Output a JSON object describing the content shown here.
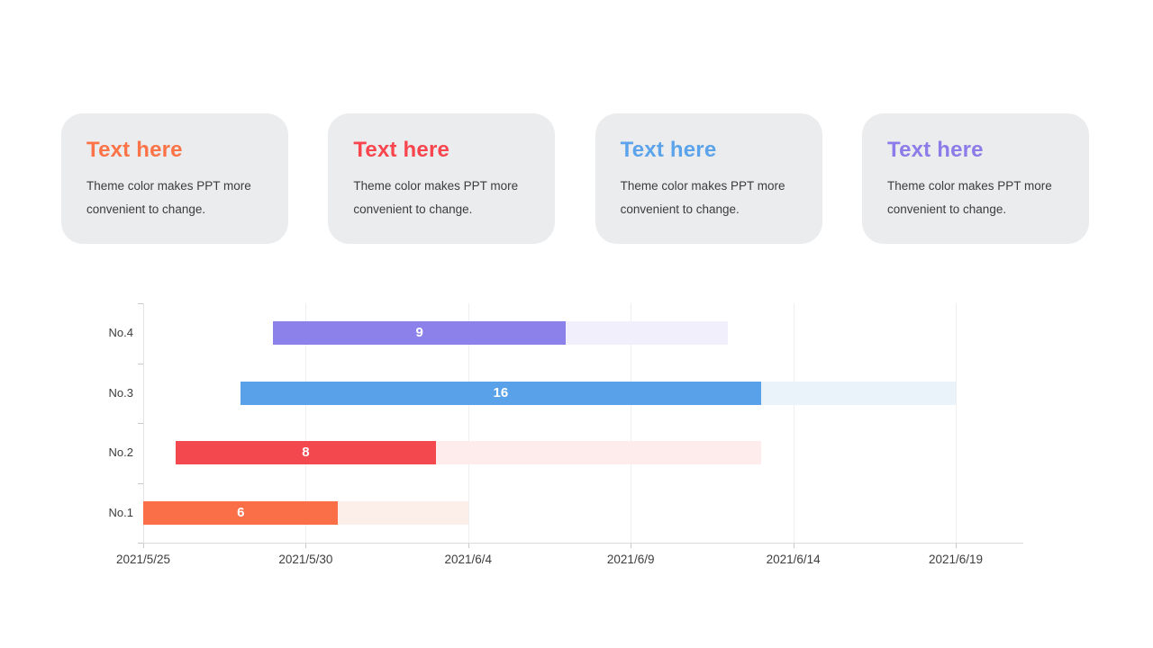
{
  "slide": {
    "card_bg": "#ebecee",
    "cards": [
      {
        "title": "Text here",
        "title_color": "#fb7347",
        "body": "Theme color makes PPT more convenient to change."
      },
      {
        "title": "Text here",
        "title_color": "#f8454e",
        "body": "Theme color makes PPT more convenient to change."
      },
      {
        "title": "Text here",
        "title_color": "#5ba3ea",
        "body": "Theme color makes PPT more convenient to change."
      },
      {
        "title": "Text here",
        "title_color": "#8c7be8",
        "body": "Theme color makes PPT more convenient to change."
      }
    ]
  },
  "chart_data": {
    "type": "bar",
    "subtype": "horizontal-gantt",
    "title": "",
    "xlabel": "",
    "ylabel": "",
    "grid": "vertical-light",
    "legend": "none",
    "x_axis": {
      "tick_labels": [
        "2021/5/25",
        "2021/5/30",
        "2021/6/4",
        "2021/6/9",
        "2021/6/14",
        "2021/6/19"
      ],
      "tick_days": [
        0,
        5,
        10,
        15,
        20,
        25
      ],
      "days_per_tick": 5,
      "range_days": [
        0,
        25
      ]
    },
    "rows_top_to_bottom": [
      "No.4",
      "No.3",
      "No.2",
      "No.1"
    ],
    "series": [
      {
        "label": "No.1",
        "value": 6,
        "value_label": "6",
        "start_day": 0,
        "solid_end_day": 6,
        "track_end_day": 10,
        "color": "#fa6e48",
        "track_color": "#fceee8"
      },
      {
        "label": "No.2",
        "value": 8,
        "value_label": "8",
        "start_day": 1,
        "solid_end_day": 9,
        "track_end_day": 19,
        "color": "#f4484f",
        "track_color": "#fdeceb"
      },
      {
        "label": "No.3",
        "value": 16,
        "value_label": "16",
        "start_day": 3,
        "solid_end_day": 19,
        "track_end_day": 25,
        "color": "#59a1e8",
        "track_color": "#ebf3fa"
      },
      {
        "label": "No.4",
        "value": 9,
        "value_label": "9",
        "start_day": 4,
        "solid_end_day": 13,
        "track_end_day": 18,
        "color": "#8c80ea",
        "track_color": "#f1effb"
      }
    ]
  }
}
